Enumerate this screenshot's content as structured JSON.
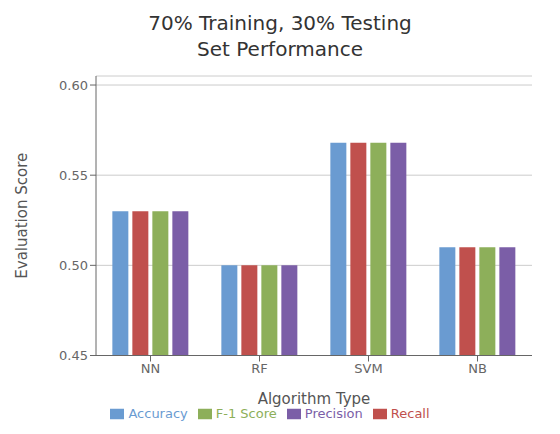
{
  "chart_data": {
    "type": "bar",
    "title": "70% Training, 30% Testing\nSet Performance",
    "xlabel": "Algorithm Type",
    "ylabel": "Evaluation Score",
    "categories": [
      "NN",
      "RF",
      "SVM",
      "NB"
    ],
    "series": [
      {
        "name": "Accuracy",
        "color": "#6A9BD1",
        "values": [
          0.53,
          0.5,
          0.568,
          0.51
        ]
      },
      {
        "name": "Recall",
        "color": "#C0504D",
        "values": [
          0.53,
          0.5,
          0.568,
          0.51
        ]
      },
      {
        "name": "F-1 Score",
        "color": "#8DAF5A",
        "values": [
          0.53,
          0.5,
          0.568,
          0.51
        ]
      },
      {
        "name": "Precision",
        "color": "#7B5EA7",
        "values": [
          0.53,
          0.5,
          0.568,
          0.51
        ]
      }
    ],
    "ylim": [
      0.45,
      0.605
    ],
    "yticks": [
      0.45,
      {
        "value": 0.5,
        "label": "0.50"
      },
      0.55,
      {
        "value": 0.6,
        "label": "0.60"
      }
    ],
    "grid": true,
    "legend": "bottom"
  }
}
